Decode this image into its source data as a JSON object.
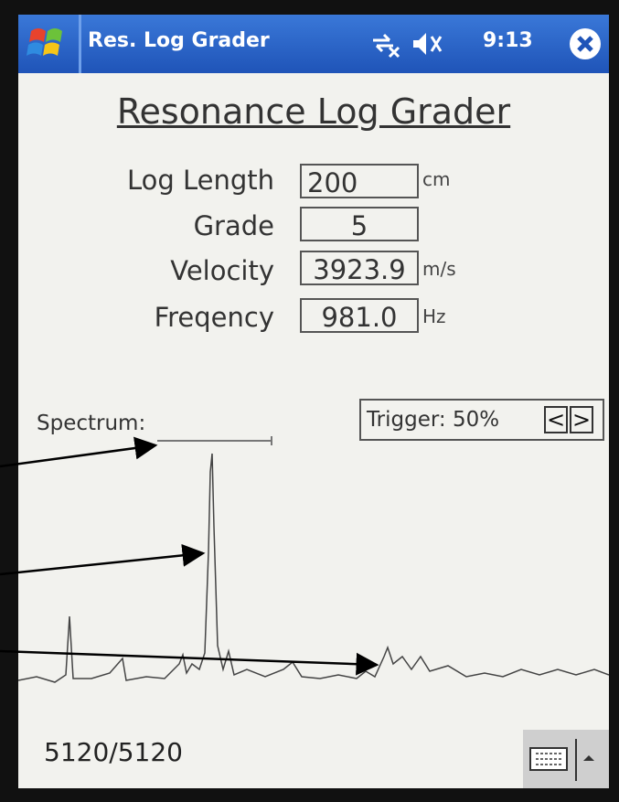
{
  "title_bar": {
    "app_name": "Res. Log Grader",
    "time": "9:13"
  },
  "header": {
    "title": "Resonance Log Grader"
  },
  "fields": [
    {
      "label": "Log Length",
      "value": "200",
      "unit": "cm"
    },
    {
      "label": "Grade",
      "value": "5"
    },
    {
      "label": "Velocity",
      "value": "3923.9",
      "unit": "m/s"
    },
    {
      "label": "Freqency",
      "value": "981.0",
      "unit": "Hz"
    }
  ],
  "spectrum": {
    "label": "Spectrum:"
  },
  "trigger": {
    "label": "Trigger: 50%",
    "decrease": "<",
    "increase": ">"
  },
  "status": {
    "count": "5120/5120"
  }
}
